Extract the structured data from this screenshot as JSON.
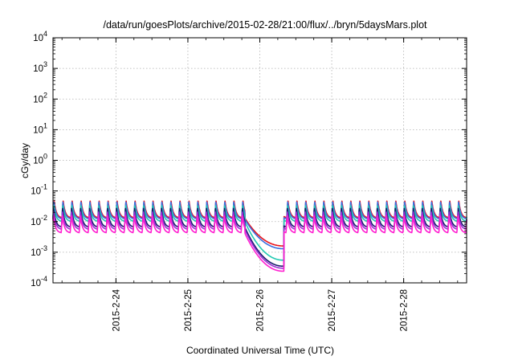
{
  "chart_data": {
    "type": "line",
    "title": "/data/run/goesPlots/archive/2015-02-28/21:00/flux/../bryn/5daysMars.plot",
    "xlabel": "Coordinated Universal Time (UTC)",
    "ylabel": "cGy/day",
    "y_scale": "log",
    "ylim": [
      0.0001,
      10000
    ],
    "y_ticks": [
      {
        "base": "10",
        "exp": "-4",
        "value": 0.0001
      },
      {
        "base": "10",
        "exp": "-3",
        "value": 0.001
      },
      {
        "base": "10",
        "exp": "-2",
        "value": 0.01
      },
      {
        "base": "10",
        "exp": "-1",
        "value": 0.1
      },
      {
        "base": "10",
        "exp": "0",
        "value": 1
      },
      {
        "base": "10",
        "exp": "1",
        "value": 10
      },
      {
        "base": "10",
        "exp": "2",
        "value": 100
      },
      {
        "base": "10",
        "exp": "3",
        "value": 1000
      },
      {
        "base": "10",
        "exp": "4",
        "value": 10000
      }
    ],
    "xlim": [
      "2015-02-23 03:00",
      "2015-02-28 21:00"
    ],
    "x_ticks": [
      "2015-2-24",
      "2015-2-25",
      "2015-2-26",
      "2015-2-27",
      "2015-2-28"
    ],
    "grid": true,
    "event": {
      "drop_start": "2015-02-25 19:00",
      "recovery": "2015-02-26 08:00",
      "minimum_values": {
        "red": 0.0016,
        "blue": 0.0013,
        "green": 0.00055,
        "navy": 0.00035,
        "purple": 0.0003,
        "magenta": 0.00024
      }
    },
    "series": [
      {
        "color": "#e8141c",
        "baseline": 0.013,
        "peak": 0.05
      },
      {
        "color": "#3b6fe0",
        "baseline": 0.012,
        "peak": 0.045
      },
      {
        "color": "#22c9b2",
        "baseline": 0.01,
        "peak": 0.035
      },
      {
        "color": "#1c1c6e",
        "baseline": 0.0065,
        "peak": 0.028
      },
      {
        "color": "#9a2fd6",
        "baseline": 0.0055,
        "peak": 0.022
      },
      {
        "color": "#ff1fd0",
        "baseline": 0.0042,
        "peak": 0.016
      }
    ]
  }
}
